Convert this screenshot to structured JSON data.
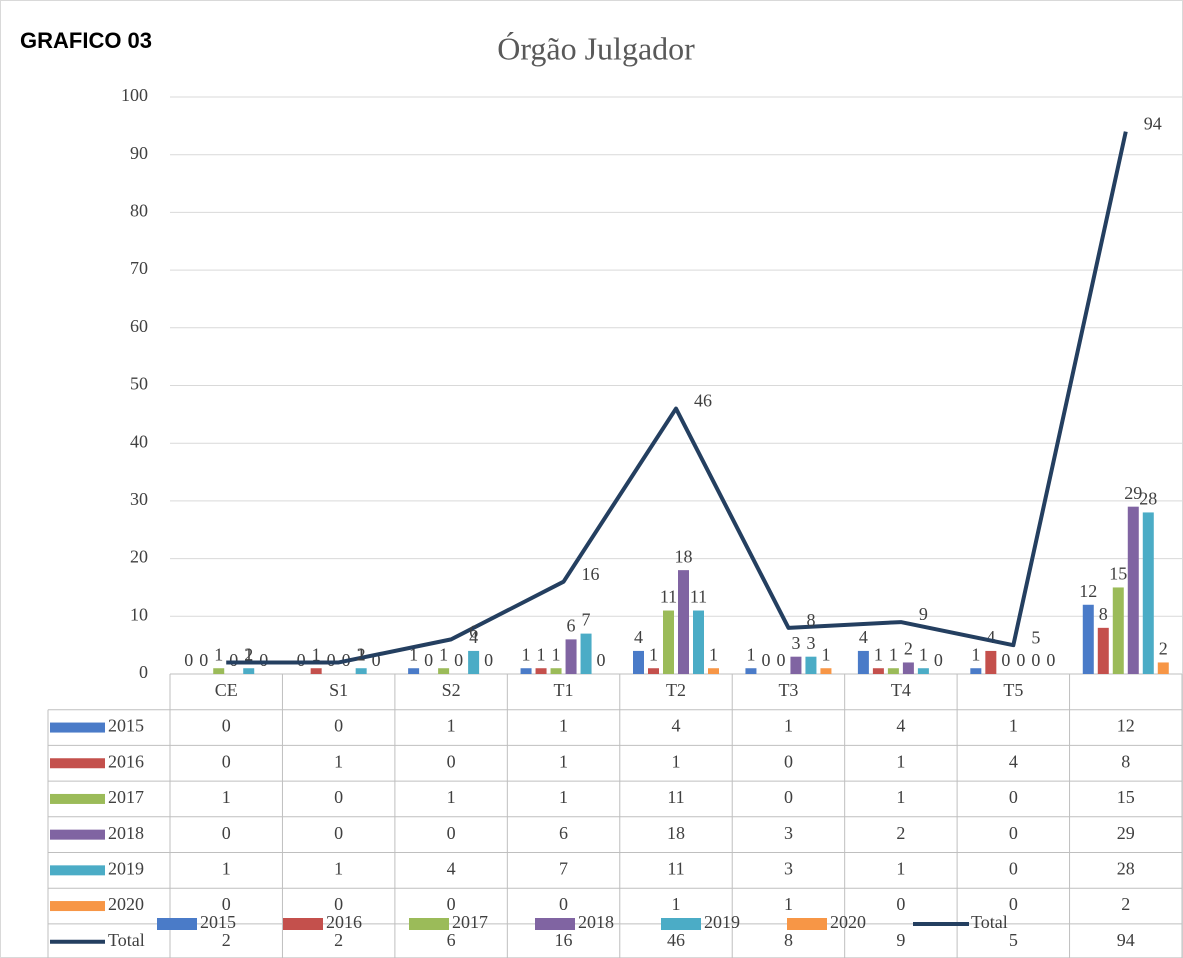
{
  "chart_data": {
    "type": "bar-line",
    "label": "GRAFICO 03",
    "title": "Órgão Julgador",
    "categories": [
      "CE",
      "S1",
      "S2",
      "T1",
      "T2",
      "T3",
      "T4",
      "T5",
      null
    ],
    "series": [
      {
        "name": "2015",
        "type": "bar",
        "color": "#4a7bc8",
        "values": [
          0,
          0,
          1,
          1,
          4,
          1,
          4,
          1,
          12
        ]
      },
      {
        "name": "2016",
        "type": "bar",
        "color": "#c4504c",
        "values": [
          0,
          1,
          0,
          1,
          1,
          0,
          1,
          4,
          8
        ]
      },
      {
        "name": "2017",
        "type": "bar",
        "color": "#9bbb59",
        "values": [
          1,
          0,
          1,
          1,
          11,
          0,
          1,
          0,
          15
        ]
      },
      {
        "name": "2018",
        "type": "bar",
        "color": "#8064a2",
        "values": [
          0,
          0,
          0,
          6,
          18,
          3,
          2,
          0,
          29
        ]
      },
      {
        "name": "2019",
        "type": "bar",
        "color": "#4bacc6",
        "values": [
          1,
          1,
          4,
          7,
          11,
          3,
          1,
          0,
          28
        ]
      },
      {
        "name": "2020",
        "type": "bar",
        "color": "#f79646",
        "values": [
          0,
          0,
          0,
          0,
          1,
          1,
          0,
          0,
          2
        ]
      },
      {
        "name": "Total",
        "type": "line",
        "color": "#243f60",
        "values": [
          2,
          2,
          6,
          16,
          46,
          8,
          9,
          5,
          94
        ]
      }
    ],
    "ylim": [
      0,
      100
    ],
    "yticks": [
      0,
      10,
      20,
      30,
      40,
      50,
      60,
      70,
      80,
      90,
      100
    ],
    "grid": true,
    "legend": "bottom",
    "data_table": true
  }
}
